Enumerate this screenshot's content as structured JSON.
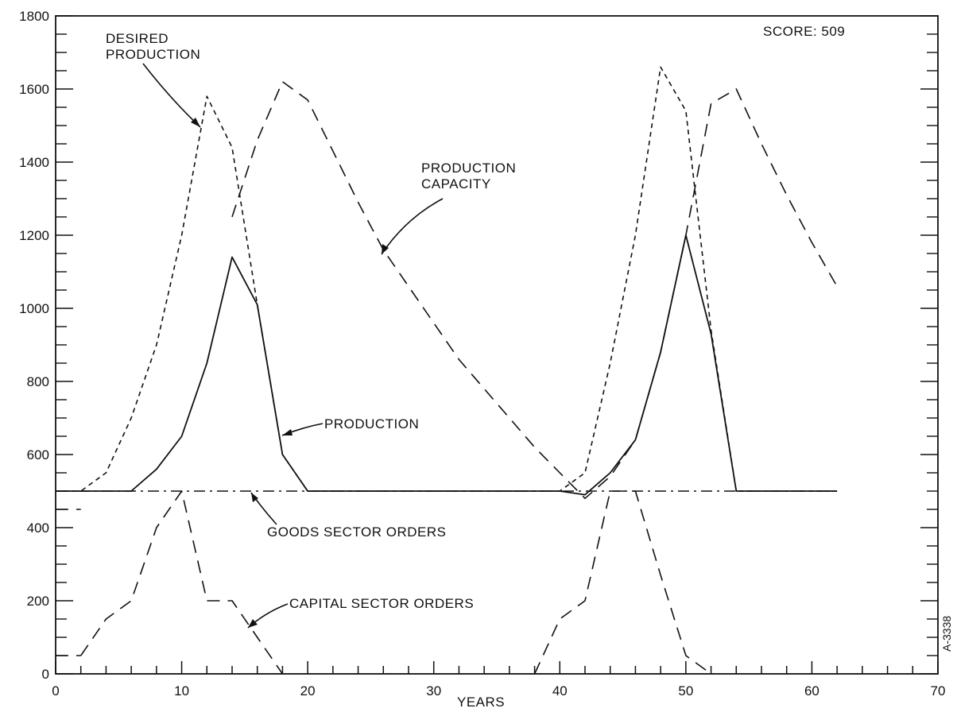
{
  "chart_data": {
    "type": "line",
    "title": "",
    "score_label": "SCORE: 509",
    "xlabel": "YEARS",
    "ylabel": "",
    "xlim": [
      0,
      70
    ],
    "ylim": [
      0,
      1800
    ],
    "x_ticks": [
      0,
      10,
      20,
      30,
      40,
      50,
      60,
      70
    ],
    "y_ticks": [
      0,
      200,
      400,
      600,
      800,
      1000,
      1200,
      1400,
      1600,
      1800
    ],
    "grid": false,
    "legend": "none",
    "side_label": "A-3338",
    "series": [
      {
        "name": "DESIRED PRODUCTION",
        "style": "short-dash",
        "x": [
          0,
          2,
          4,
          6,
          8,
          10,
          12,
          14,
          16,
          18,
          20,
          22,
          24,
          26,
          28,
          30,
          32,
          34,
          36,
          38,
          40,
          42,
          44,
          46,
          48,
          50,
          52,
          54,
          56,
          58,
          60,
          62
        ],
        "y": [
          500,
          500,
          550,
          700,
          900,
          1200,
          1580,
          1440,
          1010,
          600,
          500,
          500,
          500,
          500,
          500,
          500,
          500,
          500,
          500,
          500,
          500,
          550,
          850,
          1200,
          1660,
          1540,
          940,
          500,
          500,
          500,
          500,
          500
        ]
      },
      {
        "name": "PRODUCTION CAPACITY",
        "style": "long-dash",
        "x": [
          14,
          16,
          18,
          20,
          22,
          24,
          26,
          28,
          30,
          32,
          34,
          36,
          38,
          40,
          42,
          44,
          46,
          48,
          50,
          52,
          54,
          56,
          58,
          60,
          62
        ],
        "y": [
          1250,
          1460,
          1620,
          1570,
          1430,
          1290,
          1160,
          1060,
          960,
          860,
          780,
          700,
          620,
          550,
          480,
          540,
          640,
          880,
          1200,
          1560,
          1600,
          1450,
          1310,
          1180,
          1060
        ]
      },
      {
        "name": "PRODUCTION",
        "style": "solid",
        "x": [
          0,
          2,
          4,
          6,
          8,
          10,
          12,
          14,
          16,
          18,
          20,
          22,
          24,
          26,
          28,
          30,
          32,
          34,
          36,
          38,
          40,
          42,
          44,
          46,
          48,
          50,
          52,
          54,
          56,
          58,
          60,
          62
        ],
        "y": [
          500,
          500,
          500,
          500,
          560,
          650,
          850,
          1140,
          1010,
          600,
          500,
          500,
          500,
          500,
          500,
          500,
          500,
          500,
          500,
          500,
          500,
          490,
          550,
          640,
          880,
          1200,
          930,
          500,
          500,
          500,
          500,
          500
        ]
      },
      {
        "name": "GOODS SECTOR ORDERS",
        "style": "dash-dot",
        "x": [
          0,
          2,
          4,
          6,
          8,
          10,
          12,
          14,
          16,
          18,
          20,
          22,
          24,
          26,
          28,
          30,
          32,
          34,
          36,
          38,
          40,
          42,
          44,
          46,
          48,
          50,
          52,
          54,
          56,
          58,
          60,
          62
        ],
        "y": [
          500,
          500,
          500,
          500,
          500,
          500,
          500,
          500,
          500,
          500,
          500,
          500,
          500,
          500,
          500,
          500,
          500,
          500,
          500,
          500,
          500,
          500,
          500,
          500,
          500,
          500,
          500,
          500,
          500,
          500,
          500,
          500
        ]
      },
      {
        "name": "CAPITAL SECTOR ORDERS",
        "style": "long-dash",
        "x": [
          2,
          4,
          6,
          8,
          10,
          12,
          14,
          16,
          18
        ],
        "y": [
          50,
          150,
          200,
          400,
          500,
          200,
          200,
          100,
          0
        ]
      },
      {
        "name": "",
        "style": "long-dash",
        "x": [
          38,
          40,
          42,
          44,
          46,
          48,
          50,
          52
        ],
        "y": [
          0,
          150,
          200,
          500,
          500,
          270,
          50,
          0
        ]
      }
    ],
    "extra_short_lines": [
      {
        "x": [
          0,
          2
        ],
        "y": [
          450,
          450
        ],
        "style": "long-dash"
      },
      {
        "x": [
          0,
          2
        ],
        "y": [
          50,
          50
        ],
        "style": "long-dash"
      }
    ],
    "annotations": [
      {
        "id": "desired",
        "lines": [
          "DESIRED",
          "PRODUCTION"
        ]
      },
      {
        "id": "capacity",
        "lines": [
          "PRODUCTION",
          "CAPACITY"
        ]
      },
      {
        "id": "production",
        "lines": [
          "PRODUCTION"
        ]
      },
      {
        "id": "goods",
        "lines": [
          "GOODS SECTOR ORDERS"
        ]
      },
      {
        "id": "capital",
        "lines": [
          "CAPITAL SECTOR ORDERS"
        ]
      }
    ]
  }
}
